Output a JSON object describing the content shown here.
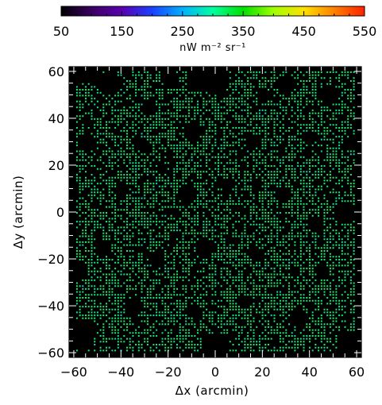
{
  "chart_data": {
    "type": "heatmap",
    "title": "",
    "xlabel": "Δx (arcmin)",
    "ylabel": "Δy (arcmin)",
    "xlim": [
      -62,
      62
    ],
    "ylim": [
      -62,
      62
    ],
    "x_ticks": [
      "−60",
      "−40",
      "−20",
      "0",
      "20",
      "40",
      "60"
    ],
    "x_tick_values": [
      -60,
      -40,
      -20,
      0,
      20,
      40,
      60
    ],
    "y_ticks": [
      "−60",
      "−40",
      "−20",
      "0",
      "20",
      "40",
      "60"
    ],
    "y_tick_values": [
      -60,
      -40,
      -20,
      0,
      20,
      40,
      60
    ],
    "colorbar": {
      "range": [
        50,
        550
      ],
      "tick_labels": [
        "50",
        "150",
        "250",
        "350",
        "450",
        "550"
      ],
      "tick_values": [
        50,
        150,
        250,
        350,
        450,
        550
      ],
      "unit_label": "nW m⁻² sr⁻¹",
      "colormap": [
        "#000000",
        "#3a0060",
        "#5a00b0",
        "#1a40ff",
        "#00b0ff",
        "#00ffa0",
        "#00e000",
        "#a0ff00",
        "#ffe000",
        "#ff8000",
        "#ff2000"
      ]
    },
    "background_color": "#000000",
    "dominant_pixel_color": "#19e86a"
  }
}
